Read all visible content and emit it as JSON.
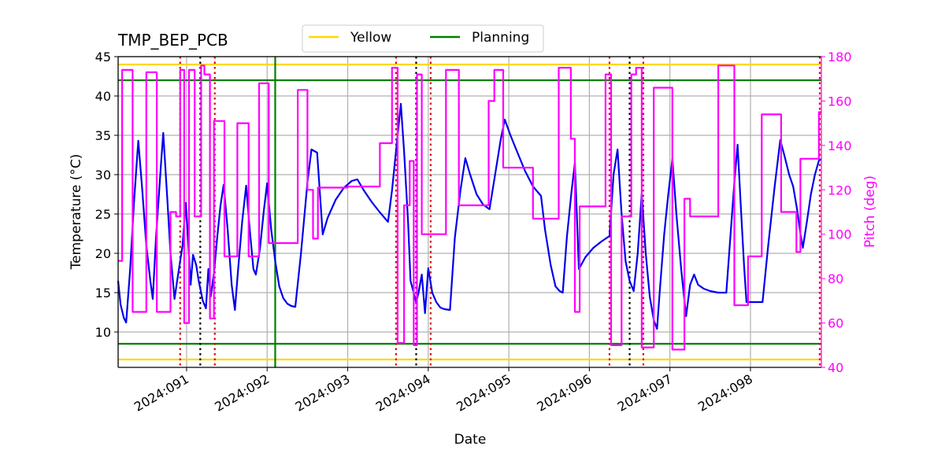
{
  "chart_data": {
    "type": "line",
    "title": "TMP_BEP_PCB",
    "xlabel": "Date",
    "ylabel": "Temperature ($^\\circ$C)",
    "ylabel_display": "Temperature (°C)",
    "y2label": "Pitch (deg)",
    "xlim": [
      90.15,
      98.88
    ],
    "ylim": [
      5.5,
      45
    ],
    "y2lim": [
      40,
      180
    ],
    "grid": true,
    "legend_position": "top-center",
    "x_ticks": [
      {
        "value": 91,
        "label": "2024:091"
      },
      {
        "value": 92,
        "label": "2024:092"
      },
      {
        "value": 93,
        "label": "2024:093"
      },
      {
        "value": 94,
        "label": "2024:094"
      },
      {
        "value": 95,
        "label": "2024:095"
      },
      {
        "value": 96,
        "label": "2024:096"
      },
      {
        "value": 97,
        "label": "2024:097"
      },
      {
        "value": 98,
        "label": "2024:098"
      }
    ],
    "y_ticks": [
      10,
      15,
      20,
      25,
      30,
      35,
      40,
      45
    ],
    "y2_ticks": [
      40,
      60,
      80,
      100,
      120,
      140,
      160,
      180
    ],
    "colors": {
      "temperature": "#0000ee",
      "pitch": "#ff00ff",
      "yellow": "#ffd700",
      "planning": "#008000",
      "red_vline": "#dd0000",
      "black_vline": "#000000",
      "grid": "#b0b0b0"
    },
    "limits": [
      {
        "name": "Yellow",
        "values": [
          44,
          6.5
        ],
        "color": "#ffd700"
      },
      {
        "name": "Planning",
        "values": [
          42,
          8.5
        ],
        "color": "#008000"
      }
    ],
    "legend": [
      {
        "label": "Yellow",
        "color": "#ffd700"
      },
      {
        "label": "Planning",
        "color": "#008000"
      }
    ],
    "vlines_green": [
      92.1
    ],
    "vlines_red": [
      90.92,
      91.35,
      93.6,
      94.03,
      96.25,
      96.67,
      98.86
    ],
    "vlines_black": [
      91.17,
      93.85,
      96.5
    ],
    "series": [
      {
        "name": "TMP_BEP_PCB",
        "axis": "left",
        "points": [
          [
            90.15,
            16.5
          ],
          [
            90.18,
            13.5
          ],
          [
            90.22,
            11.8
          ],
          [
            90.25,
            11.2
          ],
          [
            90.3,
            18
          ],
          [
            90.35,
            27
          ],
          [
            90.4,
            34.3
          ],
          [
            90.45,
            28
          ],
          [
            90.5,
            21
          ],
          [
            90.55,
            16.5
          ],
          [
            90.58,
            14.2
          ],
          [
            90.62,
            22
          ],
          [
            90.68,
            31
          ],
          [
            90.71,
            35.3
          ],
          [
            90.76,
            27
          ],
          [
            90.8,
            20
          ],
          [
            90.85,
            14.2
          ],
          [
            90.89,
            17
          ],
          [
            90.95,
            21
          ],
          [
            90.99,
            26.4
          ],
          [
            91.02,
            21.5
          ],
          [
            91.05,
            16
          ],
          [
            91.08,
            19.8
          ],
          [
            91.12,
            18.5
          ],
          [
            91.15,
            16.5
          ],
          [
            91.18,
            15
          ],
          [
            91.2,
            14
          ],
          [
            91.24,
            13
          ],
          [
            91.27,
            18
          ],
          [
            91.3,
            14.5
          ],
          [
            91.34,
            17.5
          ],
          [
            91.38,
            22
          ],
          [
            91.42,
            26
          ],
          [
            91.46,
            28.7
          ],
          [
            91.51,
            23
          ],
          [
            91.56,
            16
          ],
          [
            91.6,
            12.8
          ],
          [
            91.64,
            18
          ],
          [
            91.69,
            24
          ],
          [
            91.74,
            28.6
          ],
          [
            91.78,
            23.5
          ],
          [
            91.83,
            18
          ],
          [
            91.86,
            17.3
          ],
          [
            91.91,
            20.5
          ],
          [
            91.96,
            25.5
          ],
          [
            92.0,
            28.9
          ],
          [
            92.05,
            23
          ],
          [
            92.1,
            19
          ],
          [
            92.15,
            15.8
          ],
          [
            92.2,
            14.3
          ],
          [
            92.25,
            13.6
          ],
          [
            92.3,
            13.3
          ],
          [
            92.35,
            13.2
          ],
          [
            92.42,
            20
          ],
          [
            92.5,
            29
          ],
          [
            92.55,
            33.2
          ],
          [
            92.62,
            32.8
          ],
          [
            92.69,
            22.4
          ],
          [
            92.75,
            24.5
          ],
          [
            92.85,
            26.8
          ],
          [
            92.95,
            28.3
          ],
          [
            93.05,
            29.2
          ],
          [
            93.12,
            29.4
          ],
          [
            93.2,
            28
          ],
          [
            93.3,
            26.5
          ],
          [
            93.4,
            25.2
          ],
          [
            93.5,
            24
          ],
          [
            93.55,
            28
          ],
          [
            93.62,
            35
          ],
          [
            93.66,
            39
          ],
          [
            93.7,
            33
          ],
          [
            93.75,
            24
          ],
          [
            93.78,
            16.5
          ],
          [
            93.85,
            13.8
          ],
          [
            93.88,
            15
          ],
          [
            93.92,
            17.3
          ],
          [
            93.96,
            12.4
          ],
          [
            94.0,
            18.1
          ],
          [
            94.05,
            15
          ],
          [
            94.1,
            13.8
          ],
          [
            94.15,
            13.1
          ],
          [
            94.2,
            12.9
          ],
          [
            94.27,
            12.8
          ],
          [
            94.33,
            22
          ],
          [
            94.4,
            28
          ],
          [
            94.46,
            32.1
          ],
          [
            94.52,
            30
          ],
          [
            94.6,
            27.5
          ],
          [
            94.68,
            26.2
          ],
          [
            94.76,
            25.6
          ],
          [
            94.83,
            30
          ],
          [
            94.9,
            34.5
          ],
          [
            94.95,
            37
          ],
          [
            95.02,
            35
          ],
          [
            95.1,
            33
          ],
          [
            95.2,
            30.5
          ],
          [
            95.3,
            28.5
          ],
          [
            95.4,
            27.3
          ],
          [
            95.45,
            23
          ],
          [
            95.52,
            18.5
          ],
          [
            95.58,
            15.8
          ],
          [
            95.63,
            15.2
          ],
          [
            95.67,
            15
          ],
          [
            95.72,
            22
          ],
          [
            95.78,
            28
          ],
          [
            95.82,
            31.5
          ],
          [
            95.87,
            18
          ],
          [
            95.95,
            19.5
          ],
          [
            96.05,
            20.7
          ],
          [
            96.15,
            21.5
          ],
          [
            96.25,
            22.2
          ],
          [
            96.3,
            30
          ],
          [
            96.35,
            33.2
          ],
          [
            96.4,
            25
          ],
          [
            96.45,
            19
          ],
          [
            96.5,
            16.5
          ],
          [
            96.55,
            15.2
          ],
          [
            96.6,
            20
          ],
          [
            96.65,
            27.6
          ],
          [
            96.7,
            20
          ],
          [
            96.75,
            14.5
          ],
          [
            96.8,
            11.5
          ],
          [
            96.84,
            10.4
          ],
          [
            96.88,
            16
          ],
          [
            96.93,
            22.5
          ],
          [
            96.98,
            27.5
          ],
          [
            97.03,
            32
          ],
          [
            97.08,
            25
          ],
          [
            97.14,
            18
          ],
          [
            97.2,
            12
          ],
          [
            97.25,
            16
          ],
          [
            97.3,
            17.3
          ],
          [
            97.35,
            16
          ],
          [
            97.42,
            15.5
          ],
          [
            97.5,
            15.2
          ],
          [
            97.6,
            15
          ],
          [
            97.7,
            15
          ],
          [
            97.75,
            22
          ],
          [
            97.8,
            29
          ],
          [
            97.84,
            33.8
          ],
          [
            97.88,
            26
          ],
          [
            97.92,
            18.5
          ],
          [
            97.95,
            13.8
          ],
          [
            98.15,
            13.8
          ],
          [
            98.22,
            21
          ],
          [
            98.3,
            28.5
          ],
          [
            98.37,
            34.4
          ],
          [
            98.42,
            32.5
          ],
          [
            98.48,
            30
          ],
          [
            98.53,
            28.5
          ],
          [
            98.58,
            25.5
          ],
          [
            98.62,
            22.5
          ],
          [
            98.65,
            20.7
          ],
          [
            98.7,
            24
          ],
          [
            98.75,
            27.5
          ],
          [
            98.8,
            30
          ],
          [
            98.85,
            31.8
          ],
          [
            98.88,
            32
          ]
        ]
      },
      {
        "name": "Pitch",
        "axis": "right",
        "points": [
          [
            90.15,
            88
          ],
          [
            90.2,
            88
          ],
          [
            90.2,
            174
          ],
          [
            90.33,
            174
          ],
          [
            90.33,
            65
          ],
          [
            90.5,
            65
          ],
          [
            90.5,
            173
          ],
          [
            90.63,
            173
          ],
          [
            90.63,
            65
          ],
          [
            90.8,
            65
          ],
          [
            90.8,
            110
          ],
          [
            90.87,
            110
          ],
          [
            90.87,
            108
          ],
          [
            90.92,
            108
          ],
          [
            90.92,
            174
          ],
          [
            90.97,
            174
          ],
          [
            90.97,
            60
          ],
          [
            91.03,
            60
          ],
          [
            91.03,
            174
          ],
          [
            91.1,
            174
          ],
          [
            91.1,
            108
          ],
          [
            91.18,
            108
          ],
          [
            91.18,
            176
          ],
          [
            91.22,
            176
          ],
          [
            91.22,
            172
          ],
          [
            91.29,
            172
          ],
          [
            91.29,
            62
          ],
          [
            91.34,
            62
          ],
          [
            91.34,
            151
          ],
          [
            91.47,
            151
          ],
          [
            91.47,
            90
          ],
          [
            91.63,
            90
          ],
          [
            91.63,
            150
          ],
          [
            91.77,
            150
          ],
          [
            91.77,
            90
          ],
          [
            91.9,
            90
          ],
          [
            91.9,
            168
          ],
          [
            92.02,
            168
          ],
          [
            92.02,
            96
          ],
          [
            92.38,
            96
          ],
          [
            92.38,
            165
          ],
          [
            92.5,
            165
          ],
          [
            92.5,
            120
          ],
          [
            92.57,
            120
          ],
          [
            92.57,
            98
          ],
          [
            92.63,
            98
          ],
          [
            92.63,
            121
          ],
          [
            93.0,
            121
          ],
          [
            93.0,
            121.5
          ],
          [
            93.4,
            121.5
          ],
          [
            93.4,
            141
          ],
          [
            93.55,
            141
          ],
          [
            93.55,
            175
          ],
          [
            93.62,
            175
          ],
          [
            93.62,
            51
          ],
          [
            93.7,
            51
          ],
          [
            93.7,
            113
          ],
          [
            93.77,
            113
          ],
          [
            93.77,
            133
          ],
          [
            93.82,
            133
          ],
          [
            93.82,
            50
          ],
          [
            93.86,
            50
          ],
          [
            93.86,
            172
          ],
          [
            93.92,
            172
          ],
          [
            93.92,
            100
          ],
          [
            94.22,
            100
          ],
          [
            94.22,
            174
          ],
          [
            94.38,
            174
          ],
          [
            94.38,
            113
          ],
          [
            94.75,
            113
          ],
          [
            94.75,
            160
          ],
          [
            94.82,
            160
          ],
          [
            94.82,
            174
          ],
          [
            94.93,
            174
          ],
          [
            94.93,
            130
          ],
          [
            95.3,
            130
          ],
          [
            95.3,
            107
          ],
          [
            95.62,
            107
          ],
          [
            95.62,
            175
          ],
          [
            95.77,
            175
          ],
          [
            95.77,
            143
          ],
          [
            95.82,
            143
          ],
          [
            95.82,
            65
          ],
          [
            95.88,
            65
          ],
          [
            95.88,
            112.5
          ],
          [
            96.2,
            112.5
          ],
          [
            96.2,
            172
          ],
          [
            96.27,
            172
          ],
          [
            96.27,
            50
          ],
          [
            96.4,
            50
          ],
          [
            96.4,
            108
          ],
          [
            96.52,
            108
          ],
          [
            96.52,
            172
          ],
          [
            96.58,
            172
          ],
          [
            96.58,
            175
          ],
          [
            96.65,
            175
          ],
          [
            96.65,
            49
          ],
          [
            96.8,
            49
          ],
          [
            96.8,
            166
          ],
          [
            97.03,
            166
          ],
          [
            97.03,
            48
          ],
          [
            97.18,
            48
          ],
          [
            97.18,
            116
          ],
          [
            97.25,
            116
          ],
          [
            97.25,
            108
          ],
          [
            97.6,
            108
          ],
          [
            97.6,
            176
          ],
          [
            97.8,
            176
          ],
          [
            97.8,
            68
          ],
          [
            97.97,
            68
          ],
          [
            97.97,
            90
          ],
          [
            98.14,
            90
          ],
          [
            98.14,
            154
          ],
          [
            98.38,
            154
          ],
          [
            98.38,
            110
          ],
          [
            98.57,
            110
          ],
          [
            98.57,
            92
          ],
          [
            98.62,
            92
          ],
          [
            98.62,
            134
          ],
          [
            98.85,
            134
          ],
          [
            98.85,
            155
          ],
          [
            98.88,
            155
          ]
        ]
      }
    ]
  }
}
